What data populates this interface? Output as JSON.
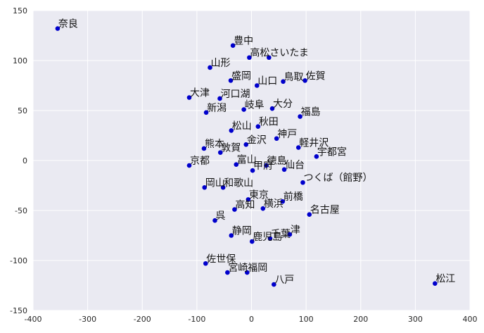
{
  "chart_data": {
    "type": "scatter",
    "xlim": [
      -400,
      400
    ],
    "ylim": [
      -150,
      150
    ],
    "x_ticks": [
      -400,
      -300,
      -200,
      -100,
      0,
      100,
      200,
      300,
      400
    ],
    "y_ticks": [
      -150,
      -100,
      -50,
      0,
      50,
      100,
      150
    ],
    "grid": true,
    "marker_color": "#0000cc",
    "background_color": "#eaeaf2",
    "grid_color": "#ffffff",
    "points": [
      {
        "label": "奈良",
        "x": -355,
        "y": 132
      },
      {
        "label": "豊中",
        "x": -34,
        "y": 115
      },
      {
        "label": "高松",
        "x": -4,
        "y": 103
      },
      {
        "label": "さいたま",
        "x": 32,
        "y": 103
      },
      {
        "label": "山形",
        "x": -76,
        "y": 93
      },
      {
        "label": "盛岡",
        "x": -38,
        "y": 80
      },
      {
        "label": "鳥取",
        "x": 58,
        "y": 79
      },
      {
        "label": "佐賀",
        "x": 98,
        "y": 80
      },
      {
        "label": "山口",
        "x": 10,
        "y": 75
      },
      {
        "label": "大津",
        "x": -114,
        "y": 63
      },
      {
        "label": "河口湖",
        "x": -58,
        "y": 62
      },
      {
        "label": "新潟",
        "x": -83,
        "y": 48
      },
      {
        "label": "岐阜",
        "x": -14,
        "y": 51
      },
      {
        "label": "大分",
        "x": 38,
        "y": 52
      },
      {
        "label": "福島",
        "x": 89,
        "y": 44
      },
      {
        "label": "秋田",
        "x": 12,
        "y": 34
      },
      {
        "label": "松山",
        "x": -37,
        "y": 30
      },
      {
        "label": "神戸",
        "x": 46,
        "y": 22
      },
      {
        "label": "金沢",
        "x": -10,
        "y": 16
      },
      {
        "label": "軽井沢",
        "x": 86,
        "y": 13
      },
      {
        "label": "熊本",
        "x": -87,
        "y": 12
      },
      {
        "label": "敦賀",
        "x": -57,
        "y": 8
      },
      {
        "label": "宇都宮",
        "x": 119,
        "y": 4
      },
      {
        "label": "富山",
        "x": -28,
        "y": -4
      },
      {
        "label": "京都",
        "x": -114,
        "y": -5
      },
      {
        "label": "甲府",
        "x": 2,
        "y": -10
      },
      {
        "label": "徳島",
        "x": 27,
        "y": -5
      },
      {
        "label": "仙台",
        "x": 60,
        "y": -9
      },
      {
        "label": "つくば（館野）",
        "x": 94,
        "y": -22
      },
      {
        "label": "岡山",
        "x": -86,
        "y": -27
      },
      {
        "label": "和歌山",
        "x": -52,
        "y": -27
      },
      {
        "label": "東京",
        "x": -6,
        "y": -39
      },
      {
        "label": "前橋",
        "x": 57,
        "y": -41
      },
      {
        "label": "高知",
        "x": -31,
        "y": -49
      },
      {
        "label": "横浜",
        "x": 21,
        "y": -48
      },
      {
        "label": "名古屋",
        "x": 106,
        "y": -54
      },
      {
        "label": "呉",
        "x": -67,
        "y": -60
      },
      {
        "label": "静岡",
        "x": -37,
        "y": -75
      },
      {
        "label": "鹿児島",
        "x": 1,
        "y": -81
      },
      {
        "label": "千葉",
        "x": 34,
        "y": -78
      },
      {
        "label": "津",
        "x": 70,
        "y": -74
      },
      {
        "label": "佐世保",
        "x": -84,
        "y": -103
      },
      {
        "label": "宮崎",
        "x": -44,
        "y": -112
      },
      {
        "label": "福岡",
        "x": -8,
        "y": -112
      },
      {
        "label": "八戸",
        "x": 41,
        "y": -124
      },
      {
        "label": "松江",
        "x": 336,
        "y": -123
      }
    ]
  }
}
